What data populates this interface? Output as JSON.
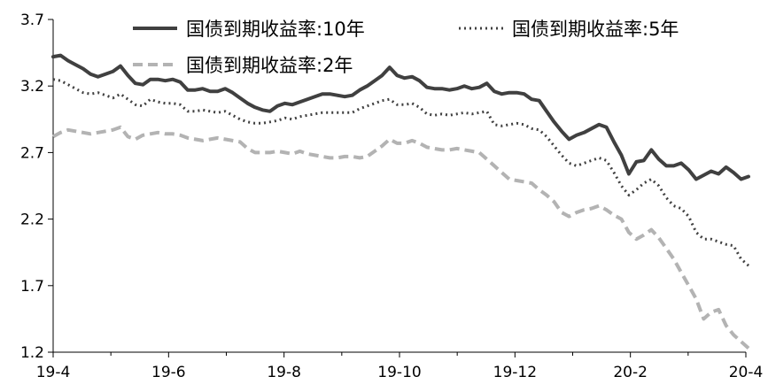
{
  "chart_data": {
    "type": "line",
    "title": "",
    "xlabel": "",
    "ylabel": "",
    "x_ticks": [
      "19-4",
      "19-6",
      "19-8",
      "19-10",
      "19-12",
      "20-2",
      "20-4"
    ],
    "y_ticks": [
      "3.7",
      "3.2",
      "2.7",
      "2.2",
      "1.7",
      "1.2"
    ],
    "ylim": [
      1.2,
      3.7
    ],
    "grid": false,
    "legend_position": "top",
    "series": [
      {
        "name": "国债到期收益率:10年",
        "color": "#404040",
        "style": "solid",
        "values": [
          3.42,
          3.43,
          3.39,
          3.36,
          3.33,
          3.29,
          3.27,
          3.29,
          3.31,
          3.35,
          3.28,
          3.22,
          3.21,
          3.25,
          3.25,
          3.24,
          3.25,
          3.23,
          3.17,
          3.17,
          3.18,
          3.16,
          3.16,
          3.18,
          3.15,
          3.11,
          3.07,
          3.04,
          3.02,
          3.01,
          3.05,
          3.07,
          3.06,
          3.08,
          3.1,
          3.12,
          3.14,
          3.14,
          3.13,
          3.12,
          3.13,
          3.17,
          3.2,
          3.24,
          3.28,
          3.34,
          3.28,
          3.26,
          3.27,
          3.24,
          3.19,
          3.18,
          3.18,
          3.17,
          3.18,
          3.2,
          3.18,
          3.19,
          3.22,
          3.16,
          3.14,
          3.15,
          3.15,
          3.14,
          3.1,
          3.09,
          3.01,
          2.93,
          2.86,
          2.8,
          2.83,
          2.85,
          2.88,
          2.91,
          2.89,
          2.78,
          2.68,
          2.54,
          2.63,
          2.64,
          2.72,
          2.65,
          2.6,
          2.6,
          2.62,
          2.57,
          2.5,
          2.53,
          2.56,
          2.54,
          2.59,
          2.55,
          2.5,
          2.52
        ]
      },
      {
        "name": "国债到期收益率:5年",
        "color": "#404040",
        "style": "dotted",
        "values": [
          3.25,
          3.24,
          3.21,
          3.18,
          3.15,
          3.14,
          3.15,
          3.13,
          3.11,
          3.14,
          3.1,
          3.06,
          3.05,
          3.1,
          3.08,
          3.07,
          3.07,
          3.06,
          3.01,
          3.01,
          3.02,
          3.01,
          3.0,
          3.01,
          2.98,
          2.95,
          2.93,
          2.92,
          2.92,
          2.93,
          2.94,
          2.96,
          2.95,
          2.97,
          2.98,
          2.99,
          3.0,
          3.0,
          3.0,
          3.0,
          3.0,
          3.03,
          3.05,
          3.07,
          3.09,
          3.1,
          3.06,
          3.06,
          3.07,
          3.04,
          2.99,
          2.98,
          2.99,
          2.98,
          2.99,
          3.0,
          2.99,
          3.0,
          3.01,
          2.91,
          2.9,
          2.91,
          2.92,
          2.91,
          2.88,
          2.87,
          2.82,
          2.75,
          2.68,
          2.62,
          2.6,
          2.62,
          2.64,
          2.66,
          2.64,
          2.55,
          2.45,
          2.38,
          2.42,
          2.47,
          2.5,
          2.45,
          2.36,
          2.3,
          2.28,
          2.22,
          2.1,
          2.05,
          2.05,
          2.03,
          2.01,
          2.0,
          1.9,
          1.85
        ]
      },
      {
        "name": "国债到期收益率:2年",
        "color": "#b3b3b3",
        "style": "dashed",
        "values": [
          2.82,
          2.85,
          2.87,
          2.86,
          2.85,
          2.84,
          2.85,
          2.86,
          2.87,
          2.89,
          2.82,
          2.8,
          2.83,
          2.84,
          2.85,
          2.84,
          2.84,
          2.83,
          2.81,
          2.8,
          2.79,
          2.8,
          2.81,
          2.8,
          2.79,
          2.78,
          2.73,
          2.7,
          2.7,
          2.7,
          2.71,
          2.7,
          2.69,
          2.71,
          2.69,
          2.68,
          2.67,
          2.66,
          2.66,
          2.67,
          2.67,
          2.66,
          2.67,
          2.71,
          2.75,
          2.8,
          2.77,
          2.77,
          2.79,
          2.77,
          2.74,
          2.73,
          2.72,
          2.72,
          2.73,
          2.72,
          2.71,
          2.7,
          2.65,
          2.6,
          2.55,
          2.5,
          2.49,
          2.48,
          2.47,
          2.42,
          2.38,
          2.33,
          2.25,
          2.22,
          2.25,
          2.27,
          2.28,
          2.3,
          2.27,
          2.23,
          2.2,
          2.1,
          2.05,
          2.08,
          2.12,
          2.06,
          1.98,
          1.9,
          1.8,
          1.7,
          1.6,
          1.45,
          1.5,
          1.52,
          1.4,
          1.33,
          1.28,
          1.23
        ]
      }
    ]
  }
}
